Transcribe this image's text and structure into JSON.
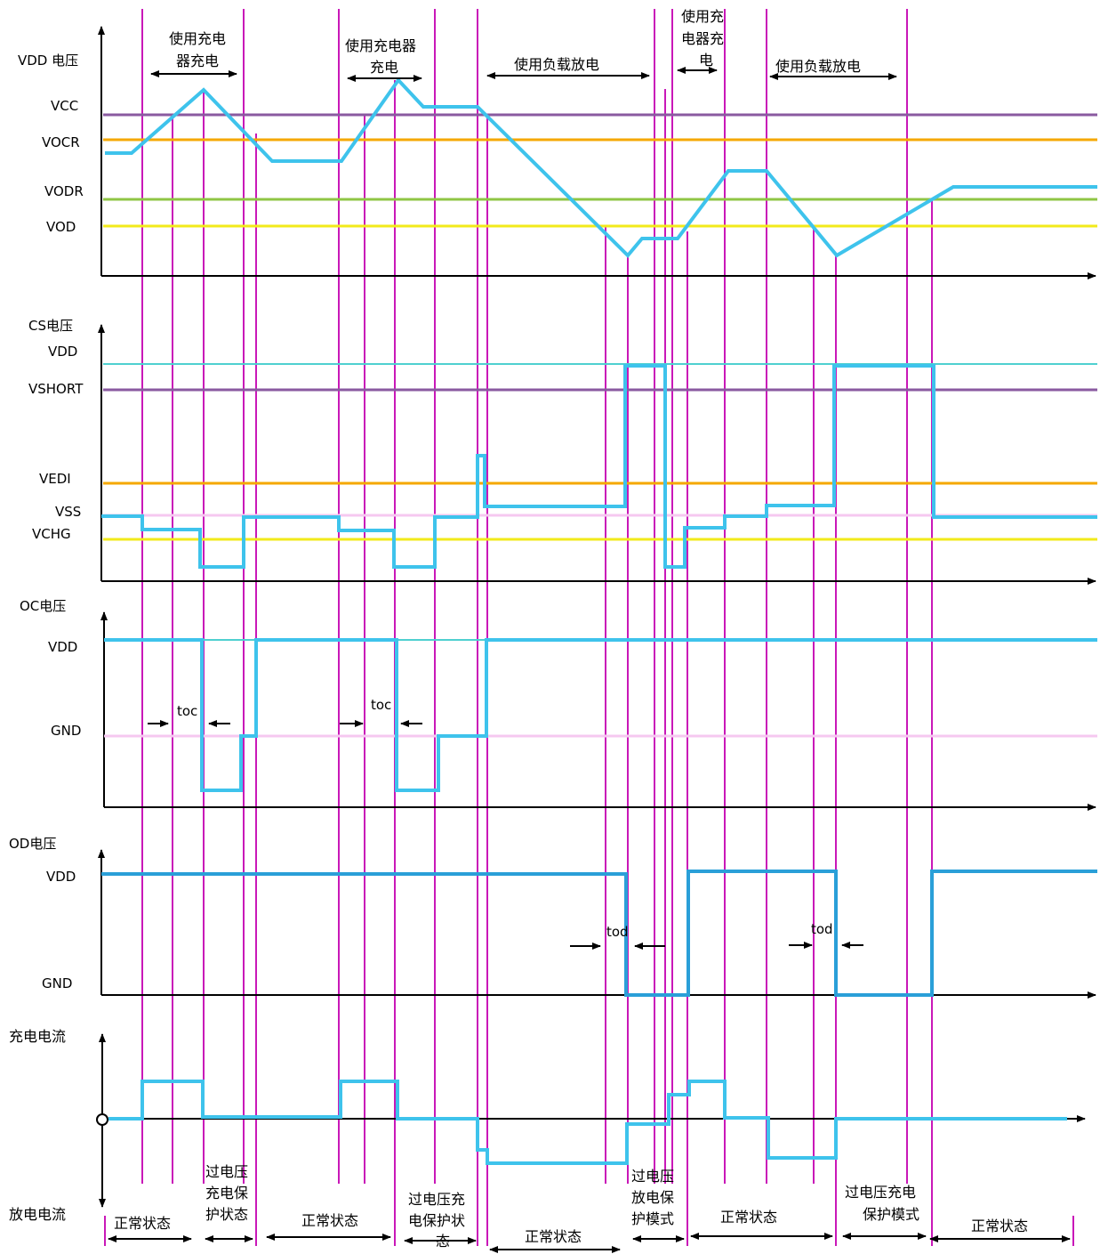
{
  "colors": {
    "signal": "#3ec3ec",
    "signal_dark": "#2a9fd8",
    "marker": "#c918b8",
    "purple": "#8a5aa0",
    "orange": "#f5a800",
    "green": "#8fc545",
    "yellow": "#f2ea1a",
    "cyan_line": "#4fd0d0",
    "pink_line": "#f6c8f0",
    "axis": "#000000"
  },
  "panels": {
    "vdd": {
      "title": "VDD 电压",
      "levels": {
        "vcc": "VCC",
        "vocr": "VOCR",
        "vodr": "VODR",
        "vod": "VOD"
      },
      "phases": {
        "p1": [
          "使用充电",
          "器充电"
        ],
        "p2": [
          "使用充电器",
          "充电"
        ],
        "p3": "使用负载放电",
        "p4": [
          "使用充",
          "电器充",
          "电"
        ],
        "p5": "使用负载放电"
      }
    },
    "cs": {
      "title": "CS电压",
      "levels": {
        "vdd": "VDD",
        "vshort": "VSHORT",
        "vedi": "VEDI",
        "vss": "VSS",
        "vchg": "VCHG"
      }
    },
    "oc": {
      "title": "OC电压",
      "levels": {
        "vdd": "VDD",
        "gnd": "GND"
      },
      "toc": "toc"
    },
    "od": {
      "title": "OD电压",
      "levels": {
        "vdd": "VDD",
        "gnd": "GND"
      },
      "tod": "tod"
    },
    "current": {
      "charge": "充电电流",
      "discharge": "放电电流"
    }
  },
  "states": {
    "s1": "正常状态",
    "s2": [
      "过电压",
      "充电保",
      "护状态"
    ],
    "s3": "正常状态",
    "s4": [
      "过电压充",
      "电保护状",
      "态"
    ],
    "s5": "正常状态",
    "s6": [
      "过电压",
      "放电保",
      "护模式"
    ],
    "s7": "正常状态",
    "s8": [
      "过电压充电",
      "保护模式"
    ],
    "s9": "正常状态"
  }
}
